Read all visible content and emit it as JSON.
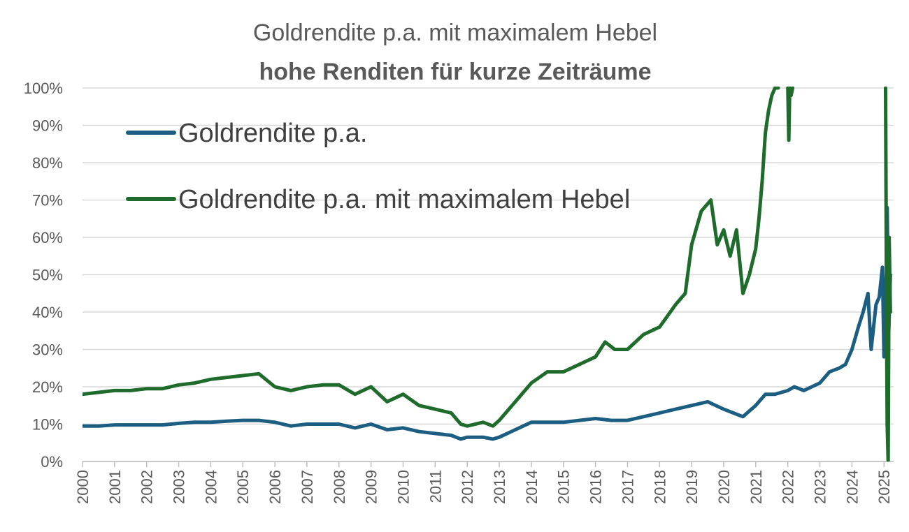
{
  "chart_data": {
    "type": "line",
    "title": "Goldrendite p.a. mit maximalem Hebel",
    "subtitle": "hohe Renditen für kurze Zeiträume",
    "xlabel": "",
    "ylabel": "",
    "x_ticks": [
      "2000",
      "2001",
      "2002",
      "2003",
      "2004",
      "2005",
      "2006",
      "2007",
      "2008",
      "2009",
      "2010",
      "2011",
      "2012",
      "2013",
      "2014",
      "2015",
      "2016",
      "2017",
      "2018",
      "2019",
      "2020",
      "2021",
      "2022",
      "2023",
      "2024",
      "2025"
    ],
    "y_ticks": [
      "0%",
      "10%",
      "20%",
      "30%",
      "40%",
      "50%",
      "60%",
      "70%",
      "80%",
      "90%",
      "100%"
    ],
    "xlim": [
      2000,
      2025.3
    ],
    "ylim": [
      0,
      100
    ],
    "grid": true,
    "legend_position": "top-left",
    "series": [
      {
        "name": "Goldrendite p.a.",
        "color": "#1b5e82",
        "x": [
          2000,
          2000.5,
          2001,
          2001.5,
          2002,
          2002.5,
          2003,
          2003.5,
          2004,
          2004.5,
          2005,
          2005.5,
          2006,
          2006.5,
          2007,
          2007.5,
          2008,
          2008.5,
          2009,
          2009.5,
          2010,
          2010.5,
          2011,
          2011.5,
          2011.8,
          2012,
          2012.5,
          2012.8,
          2013,
          2013.5,
          2014,
          2014.5,
          2015,
          2015.5,
          2016,
          2016.5,
          2017,
          2017.5,
          2018,
          2018.5,
          2019,
          2019.5,
          2020,
          2020.3,
          2020.6,
          2021,
          2021.3,
          2021.6,
          2022,
          2022.2,
          2022.5,
          2023,
          2023.3,
          2023.6,
          2023.8,
          2024,
          2024.2,
          2024.35,
          2024.5,
          2024.6,
          2024.75,
          2024.85,
          2024.95,
          2025.0,
          2025.05,
          2025.08,
          2025.1,
          2025.15,
          2025.2
        ],
        "values": [
          9.5,
          9.5,
          9.8,
          9.8,
          9.8,
          9.8,
          10.2,
          10.5,
          10.5,
          10.8,
          11,
          11,
          10.5,
          9.5,
          10,
          10,
          10,
          9,
          10,
          8.5,
          9,
          8,
          7.5,
          7,
          6,
          6.5,
          6.5,
          6,
          6.5,
          8.5,
          10.5,
          10.5,
          10.5,
          11,
          11.5,
          11,
          11,
          12,
          13,
          14,
          15,
          16,
          14,
          13,
          12,
          15,
          18,
          18,
          19,
          20,
          19,
          21,
          24,
          25,
          26,
          30,
          36,
          40,
          45,
          30,
          42,
          44,
          52,
          28,
          45,
          52,
          68,
          35,
          50
        ]
      },
      {
        "name": "Goldrendite p.a. mit maximalem Hebel",
        "color": "#1e6b2c",
        "x": [
          2000,
          2000.5,
          2001,
          2001.5,
          2002,
          2002.5,
          2003,
          2003.5,
          2004,
          2004.5,
          2005,
          2005.5,
          2006,
          2006.5,
          2007,
          2007.5,
          2008,
          2008.5,
          2009,
          2009.5,
          2010,
          2010.5,
          2011,
          2011.5,
          2011.8,
          2012,
          2012.5,
          2012.8,
          2013,
          2013.5,
          2014,
          2014.5,
          2015,
          2015.5,
          2016,
          2016.3,
          2016.6,
          2017,
          2017.5,
          2018,
          2018.5,
          2018.8,
          2019,
          2019.3,
          2019.6,
          2019.8,
          2020,
          2020.2,
          2020.4,
          2020.6,
          2020.8,
          2021,
          2021.1,
          2021.2,
          2021.3,
          2021.4,
          2021.5,
          2021.6,
          2021.7
        ],
        "values": [
          18,
          18.5,
          19,
          19,
          19.5,
          19.5,
          20.5,
          21,
          22,
          22.5,
          23,
          23.5,
          20,
          19,
          20,
          20.5,
          20.5,
          18,
          20,
          16,
          18,
          15,
          14,
          13,
          10,
          9.5,
          10.5,
          9.5,
          11,
          16,
          21,
          24,
          24,
          26,
          28,
          32,
          30,
          30,
          34,
          36,
          42,
          45,
          58,
          67,
          70,
          58,
          62,
          55,
          62,
          45,
          50,
          57,
          65,
          75,
          88,
          94,
          98,
          100,
          100
        ]
      },
      {
        "name": "",
        "color": "#1e6b2c",
        "x": [
          2022.0,
          2022.03,
          2022.06,
          2022.1,
          2022.15
        ],
        "values": [
          100,
          86,
          100,
          98,
          100
        ]
      },
      {
        "name": "",
        "color": "#1e6b2c",
        "x": [
          2025.05,
          2025.08,
          2025.1,
          2025.13,
          2025.16,
          2025.2
        ],
        "values": [
          100,
          40,
          10,
          0,
          60,
          40
        ]
      }
    ]
  }
}
